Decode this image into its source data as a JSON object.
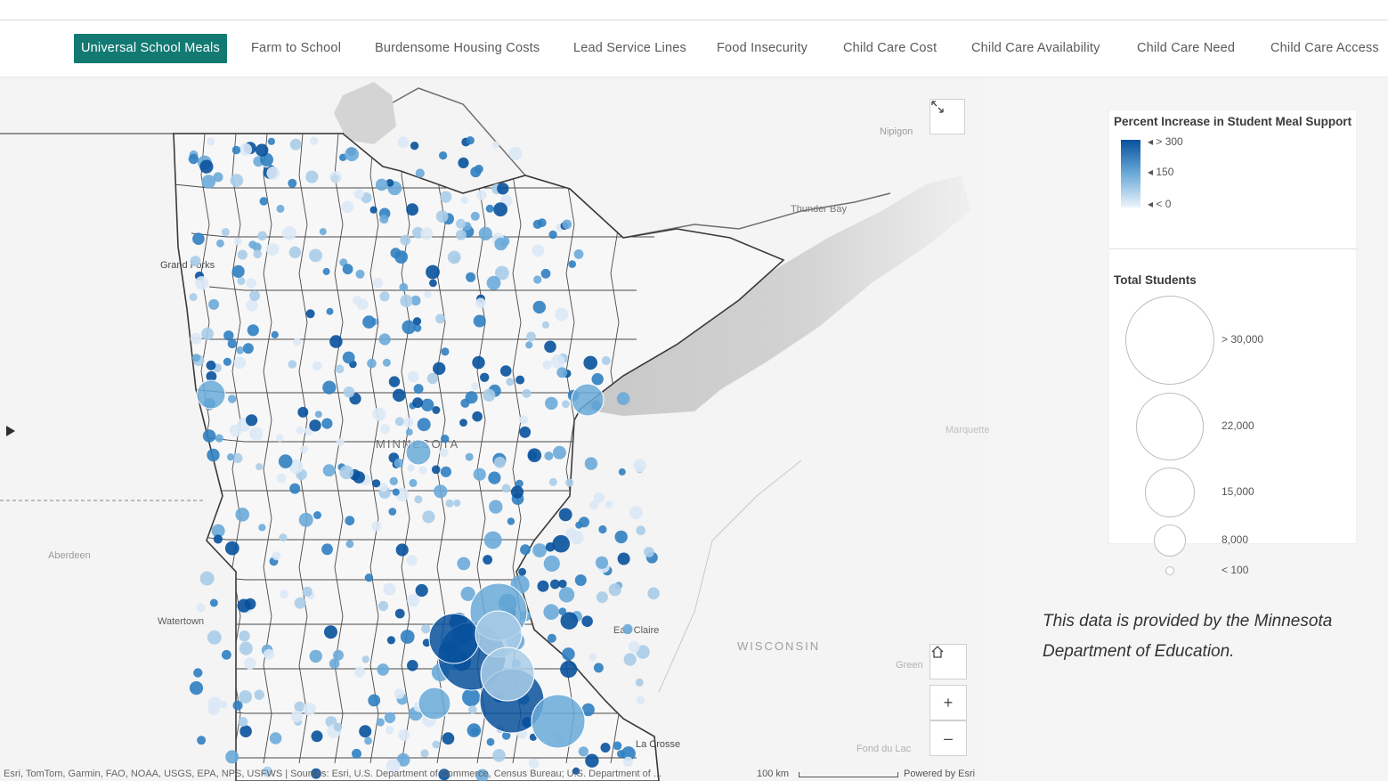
{
  "nav": {
    "tabs": [
      {
        "label": "Universal School Meals",
        "active": true
      },
      {
        "label": "Farm to School",
        "active": false
      },
      {
        "label": "Burdensome Housing Costs",
        "active": false
      },
      {
        "label": "Lead Service Lines",
        "active": false
      },
      {
        "label": "Food Insecurity",
        "active": false
      },
      {
        "label": "Child Care Cost",
        "active": false
      },
      {
        "label": "Child Care Availability",
        "active": false
      },
      {
        "label": "Child Care Need",
        "active": false
      },
      {
        "label": "Child Care Access",
        "active": false
      }
    ],
    "active_color": "#127a72"
  },
  "map": {
    "place_labels": [
      "Nipigon",
      "Thunder Bay",
      "Grand Forks",
      "MINNESOTA",
      "Aberdeen",
      "Watertown",
      "Eau Claire",
      "WISCONSIN",
      "Green",
      "Fond du Lac",
      "La Crosse",
      "Marquette"
    ],
    "attribution": "Esri, TomTom, Garmin, FAO, NOAA, USGS, EPA, NPS, USFWS | Sources: Esri, U.S. Department of Commerce, Census Bureau; U.S. Department of ...",
    "scale_label": "100 km",
    "powered_by": "Powered by Esri",
    "symbol_colors": [
      "#dbe8f6",
      "#a9cce8",
      "#6aaad8",
      "#2f7fc1",
      "#08519c"
    ],
    "controls": {
      "expand_icon": "expand-icon",
      "home_icon": "home-icon",
      "zoom_in": "+",
      "zoom_out": "–"
    }
  },
  "legend": {
    "color_title": "Percent Increase in Student Meal Support",
    "color_stops": [
      "> 300",
      "150",
      "< 0"
    ],
    "size_title": "Total Students",
    "size_stops": [
      "> 30,000",
      "22,000",
      "15,000",
      "8,000",
      "< 100"
    ]
  },
  "note": "This data is provided by the Minnesota Department of Education."
}
